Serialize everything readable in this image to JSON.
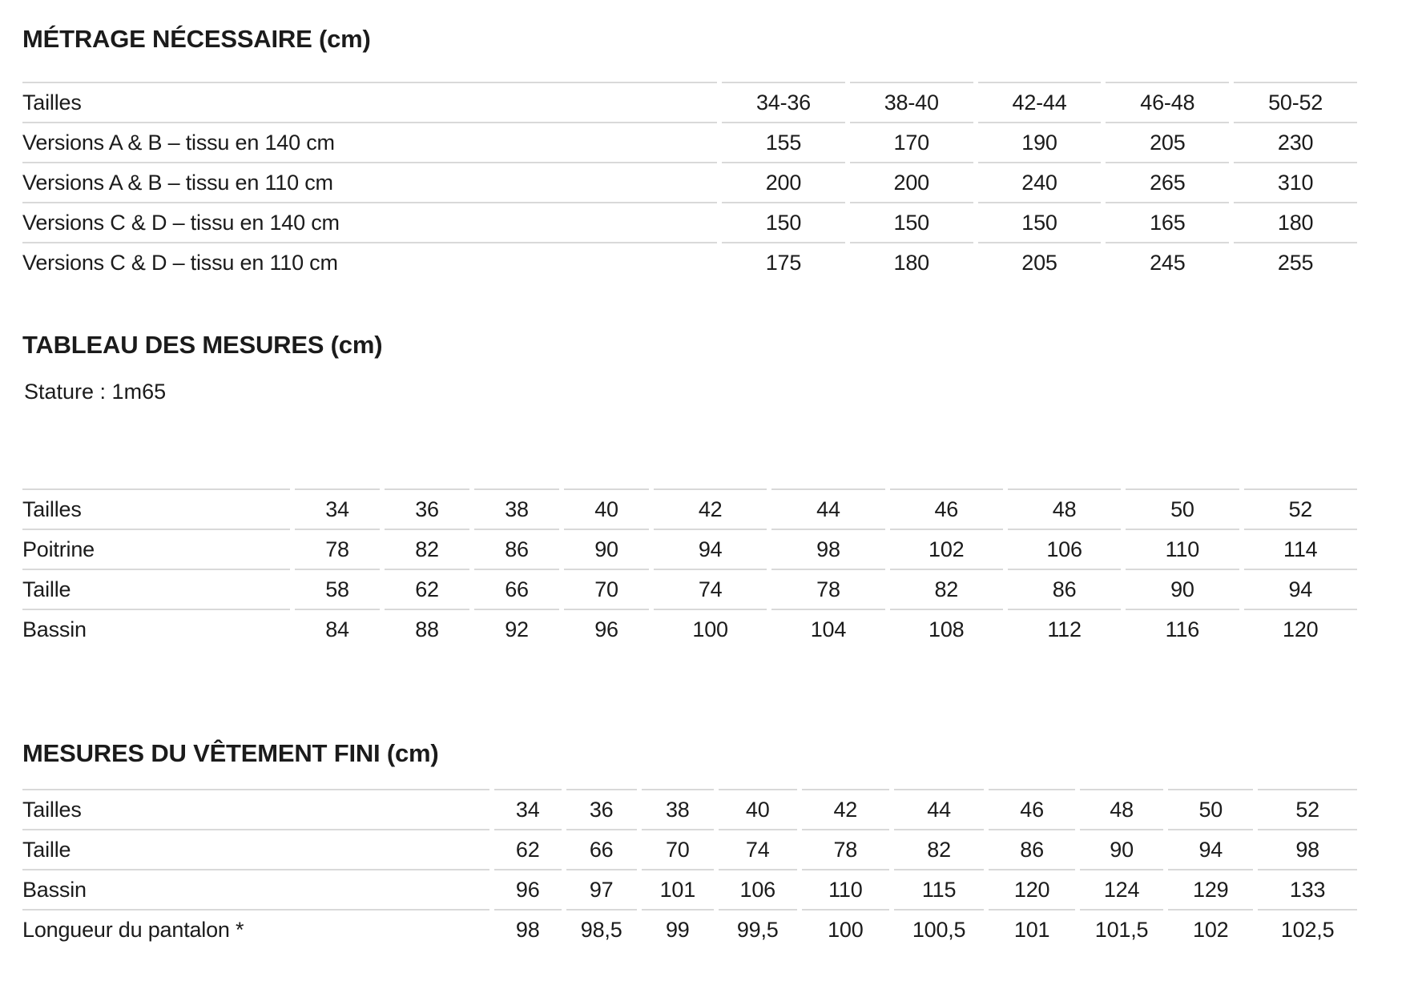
{
  "page": {
    "background_color": "#ffffff",
    "text_color": "#1b1b1b",
    "divider_color": "#d9d9d9"
  },
  "sections": {
    "metrage": {
      "title": "MÉTRAGE NÉCESSAIRE (cm)",
      "table": {
        "header_label": "Tailles",
        "columns": [
          "34-36",
          "38-40",
          "42-44",
          "46-48",
          "50-52"
        ],
        "rows": [
          {
            "label": "Versions A & B – tissu en 140 cm",
            "values": [
              "155",
              "170",
              "190",
              "205",
              "230"
            ]
          },
          {
            "label": "Versions A & B – tissu en 110 cm",
            "values": [
              "200",
              "200",
              "240",
              "265",
              "310"
            ]
          },
          {
            "label": "Versions C & D – tissu en 140 cm",
            "values": [
              "150",
              "150",
              "150",
              "165",
              "180"
            ]
          },
          {
            "label": "Versions C & D – tissu en 110 cm",
            "values": [
              "175",
              "180",
              "205",
              "245",
              "255"
            ]
          }
        ]
      }
    },
    "mesures": {
      "title": "TABLEAU DES MESURES (cm)",
      "subtitle": "Stature : 1m65",
      "table": {
        "header_label": "Tailles",
        "columns": [
          "34",
          "36",
          "38",
          "40",
          "42",
          "44",
          "46",
          "48",
          "50",
          "52"
        ],
        "rows": [
          {
            "label": "Poitrine",
            "values": [
              "78",
              "82",
              "86",
              "90",
              "94",
              "98",
              "102",
              "106",
              "110",
              "114"
            ]
          },
          {
            "label": "Taille",
            "values": [
              "58",
              "62",
              "66",
              "70",
              "74",
              "78",
              "82",
              "86",
              "90",
              "94"
            ]
          },
          {
            "label": "Bassin",
            "values": [
              "84",
              "88",
              "92",
              "96",
              "100",
              "104",
              "108",
              "112",
              "116",
              "120"
            ]
          }
        ]
      }
    },
    "fini": {
      "title": "MESURES DU VÊTEMENT FINI (cm)",
      "table": {
        "header_label": "Tailles",
        "columns": [
          "34",
          "36",
          "38",
          "40",
          "42",
          "44",
          "46",
          "48",
          "50",
          "52"
        ],
        "rows": [
          {
            "label": "Taille",
            "values": [
              "62",
              "66",
              "70",
              "74",
              "78",
              "82",
              "86",
              "90",
              "94",
              "98"
            ]
          },
          {
            "label": "Bassin",
            "values": [
              "96",
              "97",
              "101",
              "106",
              "110",
              "115",
              "120",
              "124",
              "129",
              "133"
            ]
          },
          {
            "label": "Longueur du pantalon *",
            "values": [
              "98",
              "98,5",
              "99",
              "99,5",
              "100",
              "100,5",
              "101",
              "101,5",
              "102",
              "102,5"
            ]
          }
        ]
      }
    }
  }
}
